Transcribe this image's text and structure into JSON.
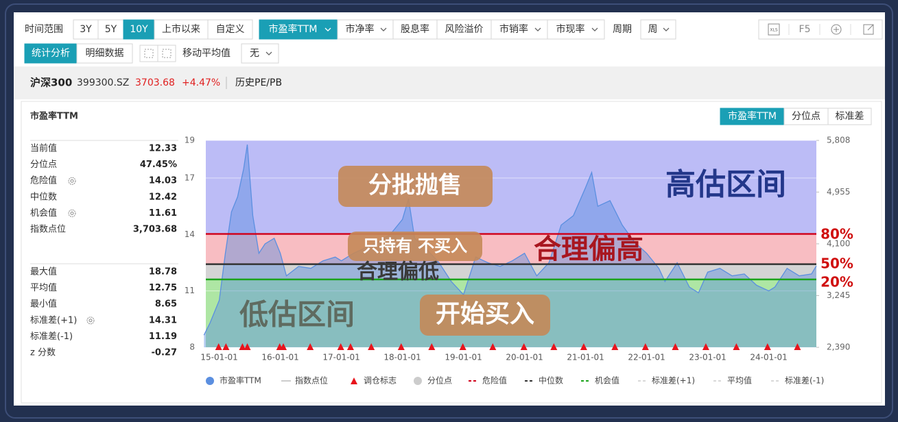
{
  "toolbar": {
    "time_range_label": "时间范围",
    "time_ranges": [
      "3Y",
      "5Y",
      "10Y",
      "上市以来",
      "自定义"
    ],
    "metrics": [
      "市盈率TTM",
      "市净率",
      "股息率",
      "风险溢价",
      "市销率",
      "市现率"
    ],
    "period_label": "周期",
    "period": "周",
    "tools": [
      "XLS",
      "F5"
    ],
    "views": [
      "统计分析",
      "明细数据"
    ],
    "moving_average_label": "移动平均值",
    "moving_average": "无"
  },
  "quote": {
    "name": "沪深300",
    "code": "399300.SZ",
    "price": "3703.68",
    "change": "+4.47%",
    "tab": "历史PE/PB"
  },
  "panel": {
    "title": "市盈率TTM",
    "tabs": [
      "市盈率TTM",
      "分位点",
      "标准差"
    ],
    "stats": [
      [
        {
          "label": "当前值",
          "value": "12.33"
        },
        {
          "label": "分位点",
          "value": "47.45%"
        },
        {
          "label": "危险值",
          "value": "14.03"
        },
        {
          "label": "中位数",
          "value": "12.42"
        },
        {
          "label": "机会值",
          "value": "11.61"
        },
        {
          "label": "指数点位",
          "value": "3,703.68"
        }
      ],
      [
        {
          "label": "最大值",
          "value": "18.78"
        },
        {
          "label": "平均值",
          "value": "12.75"
        },
        {
          "label": "最小值",
          "value": "8.65"
        },
        {
          "label": "标准差(+1)",
          "value": "14.31"
        },
        {
          "label": "标准差(-1)",
          "value": "11.19"
        },
        {
          "label": "z 分数",
          "value": "-0.27"
        }
      ]
    ]
  },
  "chart_data": {
    "type": "area",
    "x": [
      2014.75,
      2014.85,
      2015.0,
      2015.1,
      2015.2,
      2015.3,
      2015.4,
      2015.46,
      2015.55,
      2015.65,
      2015.75,
      2015.9,
      2016.0,
      2016.1,
      2016.3,
      2016.5,
      2016.7,
      2016.9,
      2017.0,
      2017.2,
      2017.4,
      2017.6,
      2017.8,
      2018.0,
      2018.1,
      2018.2,
      2018.4,
      2018.6,
      2018.8,
      2019.0,
      2019.2,
      2019.4,
      2019.6,
      2019.8,
      2020.0,
      2020.2,
      2020.4,
      2020.6,
      2020.8,
      2021.0,
      2021.1,
      2021.2,
      2021.4,
      2021.6,
      2021.8,
      2022.0,
      2022.2,
      2022.3,
      2022.5,
      2022.7,
      2022.85,
      2023.0,
      2023.2,
      2023.4,
      2023.6,
      2023.8,
      2024.0,
      2024.1,
      2024.3,
      2024.5,
      2024.7,
      2024.78
    ],
    "series": [
      {
        "name": "市盈率TTM",
        "color": "#5b8fe0",
        "values": [
          8.65,
          9.3,
          10.5,
          13,
          15.2,
          16,
          17.5,
          18.78,
          15,
          13,
          13.5,
          13.8,
          13,
          11.8,
          12.3,
          12.2,
          12.6,
          12.8,
          12.6,
          13,
          13.3,
          13.6,
          14,
          14.8,
          15.9,
          13.8,
          13.2,
          12.5,
          11.5,
          10.8,
          12.8,
          12.5,
          12.3,
          12.6,
          13,
          11.8,
          12.5,
          14.5,
          15,
          16.5,
          17.3,
          15.5,
          15.8,
          14.5,
          13.6,
          13,
          12.2,
          11.5,
          12.5,
          11.2,
          10.9,
          12,
          12.2,
          11.8,
          11.9,
          11.3,
          11.0,
          11.2,
          12.2,
          11.8,
          11.9,
          12.33
        ]
      }
    ],
    "markers": {
      "name": "调仓标志",
      "color": "#e8141c",
      "x": [
        2014.99,
        2015.11,
        2015.38,
        2015.46,
        2015.99,
        2016.05,
        2016.49,
        2016.99,
        2017.15,
        2017.49,
        2017.98,
        2018.48,
        2018.99,
        2019.48,
        2019.99,
        2020.48,
        2020.97,
        2021.48,
        2021.98,
        2022.47,
        2022.97,
        2023.47,
        2023.98,
        2024.47
      ]
    },
    "reference_lines": [
      {
        "name": "危险值",
        "value": 14.03,
        "color": "#d0021b"
      },
      {
        "name": "中位数",
        "value": 12.42,
        "color": "#333333"
      },
      {
        "name": "机会值",
        "value": 11.61,
        "color": "#1aa31a"
      }
    ],
    "zone_colors": [
      "#bcbcf6",
      "#f8bdc2",
      "#d4d4d4",
      "#aee6a4"
    ],
    "legend_extra": [
      {
        "name": "指数点位",
        "color": "#cccccc",
        "symbol": "line"
      },
      {
        "name": "分位点",
        "color": "#cccccc",
        "symbol": "dot"
      },
      {
        "name": "标准差(+1)",
        "color": "#d8d8d8",
        "symbol": "dash"
      },
      {
        "name": "平均值",
        "color": "#d8d8d8",
        "symbol": "dash"
      },
      {
        "name": "标准差(-1)",
        "color": "#d8d8d8",
        "symbol": "dash"
      }
    ],
    "xlim": [
      2014.78,
      2024.78
    ],
    "xticks": [
      {
        "value": 2015,
        "label": "15-01-01"
      },
      {
        "value": 2016,
        "label": "16-01-01"
      },
      {
        "value": 2017,
        "label": "17-01-01"
      },
      {
        "value": 2018,
        "label": "18-01-01"
      },
      {
        "value": 2019,
        "label": "19-01-01"
      },
      {
        "value": 2020,
        "label": "20-01-01"
      },
      {
        "value": 2021,
        "label": "21-01-01"
      },
      {
        "value": 2022,
        "label": "22-01-01"
      },
      {
        "value": 2023,
        "label": "23-01-01"
      },
      {
        "value": 2024,
        "label": "24-01-01"
      }
    ],
    "ylim": [
      8,
      19
    ],
    "yticks": [
      8,
      11,
      14,
      17,
      19
    ],
    "y2lim": [
      2390,
      5808
    ],
    "y2ticks": [
      {
        "value": 2390,
        "label": "2,390"
      },
      {
        "value": 3245,
        "label": "3,245"
      },
      {
        "value": 4100,
        "label": "4,100"
      },
      {
        "value": 4955,
        "label": "4,955"
      },
      {
        "value": 5808,
        "label": "5,808"
      }
    ],
    "grid": true,
    "annotations": [
      "分批抛售",
      "高估区间",
      "只持有 不买入",
      "合理偏高",
      "合理偏低",
      "低估区间",
      "开始买入",
      "80%",
      "50%",
      "20%"
    ]
  }
}
